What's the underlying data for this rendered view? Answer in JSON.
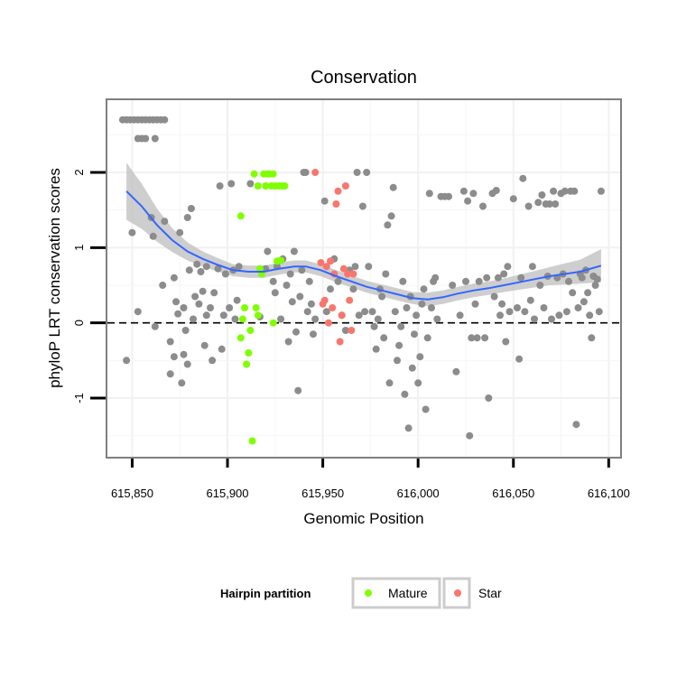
{
  "chart_data": {
    "type": "scatter",
    "title": "Conservation",
    "xlabel": "Genomic Position",
    "ylabel": "phyloP LRT conservation scores",
    "xlim": [
      615837,
      616106
    ],
    "ylim": [
      -1.78,
      2.96
    ],
    "xticks": [
      615850,
      615900,
      615950,
      616000,
      616050,
      616100
    ],
    "xtick_labels": [
      "615,850",
      "615,900",
      "615,950",
      "616,000",
      "616,050",
      "616,100"
    ],
    "yticks": [
      -1,
      0,
      1,
      2
    ],
    "ytick_labels": [
      "-1",
      "0",
      "1",
      "2"
    ],
    "reference_line": {
      "y": 0,
      "style": "dashed"
    },
    "grid": true,
    "legend": {
      "title": "Hairpin partition",
      "position": "bottom",
      "entries": [
        {
          "label": "Mature",
          "color": "#7FFF00"
        },
        {
          "label": "Star",
          "color": "#F8766D"
        }
      ]
    },
    "colors": {
      "other": "#8C8C8C",
      "Mature": "#7FFF00",
      "Star": "#F8766D",
      "smooth": "#3366FF",
      "band": "#BDBDBD"
    },
    "series": [
      {
        "name": "other",
        "points": [
          [
            615845,
            2.7
          ],
          [
            615847,
            2.7
          ],
          [
            615849,
            2.7
          ],
          [
            615851,
            2.7
          ],
          [
            615853,
            2.7
          ],
          [
            615855,
            2.7
          ],
          [
            615857,
            2.7
          ],
          [
            615859,
            2.7
          ],
          [
            615861,
            2.7
          ],
          [
            615863,
            2.7
          ],
          [
            615865,
            2.7
          ],
          [
            615867,
            2.7
          ],
          [
            615853,
            2.45
          ],
          [
            615855,
            2.45
          ],
          [
            615857,
            2.45
          ],
          [
            615862,
            2.45
          ],
          [
            615847,
            -0.5
          ],
          [
            615850,
            1.2
          ],
          [
            615853,
            0.15
          ],
          [
            615860,
            1.4
          ],
          [
            615861,
            1.15
          ],
          [
            615862,
            -0.05
          ],
          [
            615866,
            0.5
          ],
          [
            615867,
            1.35
          ],
          [
            615870,
            -0.25
          ],
          [
            615870,
            -0.68
          ],
          [
            615872,
            0.6
          ],
          [
            615872,
            -0.45
          ],
          [
            615873,
            0.28
          ],
          [
            615874,
            0.12
          ],
          [
            615875,
            1.2
          ],
          [
            615876,
            -0.8
          ],
          [
            615877,
            0.2
          ],
          [
            615877,
            -0.42
          ],
          [
            615878,
            -0.1
          ],
          [
            615879,
            1.4
          ],
          [
            615879,
            -0.55
          ],
          [
            615880,
            0.7
          ],
          [
            615881,
            1.52
          ],
          [
            615882,
            0.05
          ],
          [
            615883,
            0.35
          ],
          [
            615884,
            0.78
          ],
          [
            615885,
            0.25
          ],
          [
            615886,
            0.68
          ],
          [
            615887,
            0.42
          ],
          [
            615888,
            -0.3
          ],
          [
            615889,
            0.1
          ],
          [
            615889,
            0.75
          ],
          [
            615891,
            0.2
          ],
          [
            615892,
            -0.5
          ],
          [
            615893,
            0.4
          ],
          [
            615895,
            0.72
          ],
          [
            615896,
            1.82
          ],
          [
            615897,
            -0.35
          ],
          [
            615898,
            0.1
          ],
          [
            615899,
            0.65
          ],
          [
            615901,
            0.2
          ],
          [
            615902,
            1.85
          ],
          [
            615903,
            0.7
          ],
          [
            615904,
            0.05
          ],
          [
            615905,
            0.3
          ],
          [
            615906,
            0.75
          ],
          [
            615912,
            1.85
          ],
          [
            615917,
            0.08
          ],
          [
            615920,
            0.72
          ],
          [
            615921,
            0.95
          ],
          [
            615924,
            0.55
          ],
          [
            615925,
            0.4
          ],
          [
            615926,
            0.75
          ],
          [
            615928,
            0.05
          ],
          [
            615929,
            0.85
          ],
          [
            615931,
            0.5
          ],
          [
            615932,
            -0.25
          ],
          [
            615933,
            0.65
          ],
          [
            615934,
            0.28
          ],
          [
            615935,
            0.95
          ],
          [
            615936,
            -0.12
          ],
          [
            615937,
            -0.9
          ],
          [
            615938,
            0.35
          ],
          [
            615939,
            0.7
          ],
          [
            615940,
            2.0
          ],
          [
            615941,
            2.0
          ],
          [
            615942,
            0.15
          ],
          [
            615943,
            0.55
          ],
          [
            615944,
            0.25
          ],
          [
            615945,
            -0.15
          ],
          [
            615946,
            0.05
          ],
          [
            615951,
            1.62
          ],
          [
            615952,
            0.15
          ],
          [
            615954,
            0.45
          ],
          [
            615956,
            0.85
          ],
          [
            615958,
            0.55
          ],
          [
            615960,
            0.1
          ],
          [
            615962,
            -0.1
          ],
          [
            615964,
            0.7
          ],
          [
            615966,
            0.45
          ],
          [
            615967,
            0.75
          ],
          [
            615968,
            2.0
          ],
          [
            615969,
            0.1
          ],
          [
            615971,
            1.55
          ],
          [
            615972,
            0.15
          ],
          [
            615973,
            2.0
          ],
          [
            615974,
            0.75
          ],
          [
            615976,
            0.15
          ],
          [
            615977,
            -0.05
          ],
          [
            615978,
            -0.35
          ],
          [
            615979,
            0.05
          ],
          [
            615980,
            0.45
          ],
          [
            615981,
            0.35
          ],
          [
            615982,
            -0.2
          ],
          [
            615983,
            0.65
          ],
          [
            615984,
            1.3
          ],
          [
            615985,
            -0.8
          ],
          [
            615986,
            1.42
          ],
          [
            615987,
            1.8
          ],
          [
            615988,
            0.15
          ],
          [
            615989,
            -0.5
          ],
          [
            615990,
            -0.3
          ],
          [
            615991,
            -0.05
          ],
          [
            615992,
            0.55
          ],
          [
            615993,
            -0.95
          ],
          [
            615994,
            0.2
          ],
          [
            615995,
            -1.4
          ],
          [
            615996,
            0.35
          ],
          [
            615997,
            -0.6
          ],
          [
            615998,
            -0.15
          ],
          [
            615999,
            0.1
          ],
          [
            616000,
            -0.8
          ],
          [
            616001,
            -0.45
          ],
          [
            616002,
            0.25
          ],
          [
            616003,
            0.45
          ],
          [
            616004,
            -1.15
          ],
          [
            616005,
            -0.2
          ],
          [
            616006,
            1.72
          ],
          [
            616007,
            0.2
          ],
          [
            616008,
            0.55
          ],
          [
            616009,
            0.6
          ],
          [
            616010,
            0.05
          ],
          [
            616012,
            1.68
          ],
          [
            616014,
            1.68
          ],
          [
            616016,
            1.68
          ],
          [
            616018,
            0.5
          ],
          [
            616020,
            -0.65
          ],
          [
            616022,
            0.1
          ],
          [
            616024,
            1.75
          ],
          [
            616025,
            0.55
          ],
          [
            616026,
            1.62
          ],
          [
            616027,
            -1.5
          ],
          [
            616028,
            -0.2
          ],
          [
            616029,
            1.72
          ],
          [
            616030,
            0.25
          ],
          [
            616031,
            -0.2
          ],
          [
            616032,
            0.55
          ],
          [
            616034,
            1.55
          ],
          [
            616035,
            -0.2
          ],
          [
            616036,
            0.6
          ],
          [
            616037,
            -1.0
          ],
          [
            616039,
            1.72
          ],
          [
            616040,
            0.35
          ],
          [
            616041,
            1.76
          ],
          [
            616042,
            0.6
          ],
          [
            616043,
            0.1
          ],
          [
            616044,
            0.25
          ],
          [
            616045,
            0.65
          ],
          [
            616046,
            -0.25
          ],
          [
            616047,
            0.75
          ],
          [
            616048,
            0.15
          ],
          [
            616050,
            1.65
          ],
          [
            616052,
            0.2
          ],
          [
            616053,
            -0.48
          ],
          [
            616054,
            0.6
          ],
          [
            616055,
            1.92
          ],
          [
            616056,
            0.15
          ],
          [
            616058,
            1.55
          ],
          [
            616059,
            0.3
          ],
          [
            616060,
            0.75
          ],
          [
            616061,
            0.05
          ],
          [
            616063,
            1.6
          ],
          [
            616064,
            0.5
          ],
          [
            616065,
            1.7
          ],
          [
            616066,
            0.2
          ],
          [
            616067,
            1.58
          ],
          [
            616068,
            0.62
          ],
          [
            616069,
            1.58
          ],
          [
            616070,
            0.05
          ],
          [
            616071,
            1.75
          ],
          [
            616072,
            1.58
          ],
          [
            616073,
            0.6
          ],
          [
            616074,
            0.1
          ],
          [
            616075,
            1.72
          ],
          [
            616076,
            0.65
          ],
          [
            616077,
            1.75
          ],
          [
            616078,
            0.15
          ],
          [
            616079,
            0.55
          ],
          [
            616080,
            1.75
          ],
          [
            616081,
            0.4
          ],
          [
            616082,
            1.75
          ],
          [
            616083,
            -1.35
          ],
          [
            616084,
            0.2
          ],
          [
            616085,
            0.65
          ],
          [
            616086,
            0.6
          ],
          [
            616087,
            0.28
          ],
          [
            616088,
            0.7
          ],
          [
            616089,
            0.4
          ],
          [
            616090,
            0.1
          ],
          [
            616091,
            -0.2
          ],
          [
            616092,
            0.62
          ],
          [
            616093,
            0.5
          ],
          [
            616094,
            0.58
          ],
          [
            616095,
            0.15
          ],
          [
            616096,
            1.75
          ]
        ]
      },
      {
        "name": "Mature",
        "points": [
          [
            615907,
            1.42
          ],
          [
            615907,
            -0.2
          ],
          [
            615908,
            0.05
          ],
          [
            615909,
            0.2
          ],
          [
            615910,
            -0.55
          ],
          [
            615911,
            -0.4
          ],
          [
            615912,
            -0.1
          ],
          [
            615913,
            -1.57
          ],
          [
            615915,
            0.2
          ],
          [
            615914,
            1.98
          ],
          [
            615916,
            1.82
          ],
          [
            615916,
            0.1
          ],
          [
            615917,
            0.72
          ],
          [
            615918,
            0.65
          ],
          [
            615919,
            1.98
          ],
          [
            615920,
            1.82
          ],
          [
            615921,
            1.98
          ],
          [
            615922,
            1.98
          ],
          [
            615923,
            1.82
          ],
          [
            615924,
            1.98
          ],
          [
            615925,
            1.82
          ],
          [
            615926,
            0.82
          ],
          [
            615927,
            1.82
          ],
          [
            615928,
            0.83
          ],
          [
            615929,
            1.82
          ],
          [
            615930,
            1.82
          ],
          [
            615924,
            0.0
          ]
        ]
      },
      {
        "name": "Star",
        "points": [
          [
            615946,
            2.0
          ],
          [
            615949,
            0.8
          ],
          [
            615950,
            0.25
          ],
          [
            615951,
            0.3
          ],
          [
            615952,
            0.75
          ],
          [
            615953,
            0.0
          ],
          [
            615954,
            0.82
          ],
          [
            615955,
            0.2
          ],
          [
            615956,
            0.65
          ],
          [
            615957,
            1.58
          ],
          [
            615958,
            1.75
          ],
          [
            615959,
            -0.25
          ],
          [
            615960,
            0.1
          ],
          [
            615961,
            0.72
          ],
          [
            615962,
            1.82
          ],
          [
            615963,
            0.65
          ],
          [
            615964,
            0.3
          ],
          [
            615965,
            -0.1
          ],
          [
            615966,
            0.65
          ]
        ]
      }
    ],
    "smooth": [
      [
        615847,
        1.75
      ],
      [
        615855,
        1.55
      ],
      [
        615863,
        1.3
      ],
      [
        615871,
        1.1
      ],
      [
        615879,
        0.95
      ],
      [
        615887,
        0.85
      ],
      [
        615895,
        0.77
      ],
      [
        615903,
        0.7
      ],
      [
        615911,
        0.68
      ],
      [
        615919,
        0.68
      ],
      [
        615927,
        0.72
      ],
      [
        615935,
        0.75
      ],
      [
        615941,
        0.75
      ],
      [
        615949,
        0.7
      ],
      [
        615957,
        0.62
      ],
      [
        615965,
        0.55
      ],
      [
        615973,
        0.48
      ],
      [
        615981,
        0.43
      ],
      [
        615989,
        0.38
      ],
      [
        615997,
        0.33
      ],
      [
        616005,
        0.31
      ],
      [
        616013,
        0.34
      ],
      [
        616021,
        0.39
      ],
      [
        616029,
        0.43
      ],
      [
        616037,
        0.46
      ],
      [
        616045,
        0.5
      ],
      [
        616053,
        0.54
      ],
      [
        616061,
        0.58
      ],
      [
        616069,
        0.62
      ],
      [
        616077,
        0.65
      ],
      [
        616085,
        0.68
      ],
      [
        616096,
        0.76
      ]
    ],
    "ribbon_halfwidth": [
      0.38,
      0.3,
      0.22,
      0.16,
      0.12,
      0.1,
      0.09,
      0.08,
      0.08,
      0.08,
      0.08,
      0.08,
      0.08,
      0.08,
      0.08,
      0.08,
      0.08,
      0.08,
      0.08,
      0.08,
      0.09,
      0.09,
      0.09,
      0.09,
      0.09,
      0.09,
      0.1,
      0.11,
      0.12,
      0.14,
      0.16,
      0.22
    ]
  }
}
